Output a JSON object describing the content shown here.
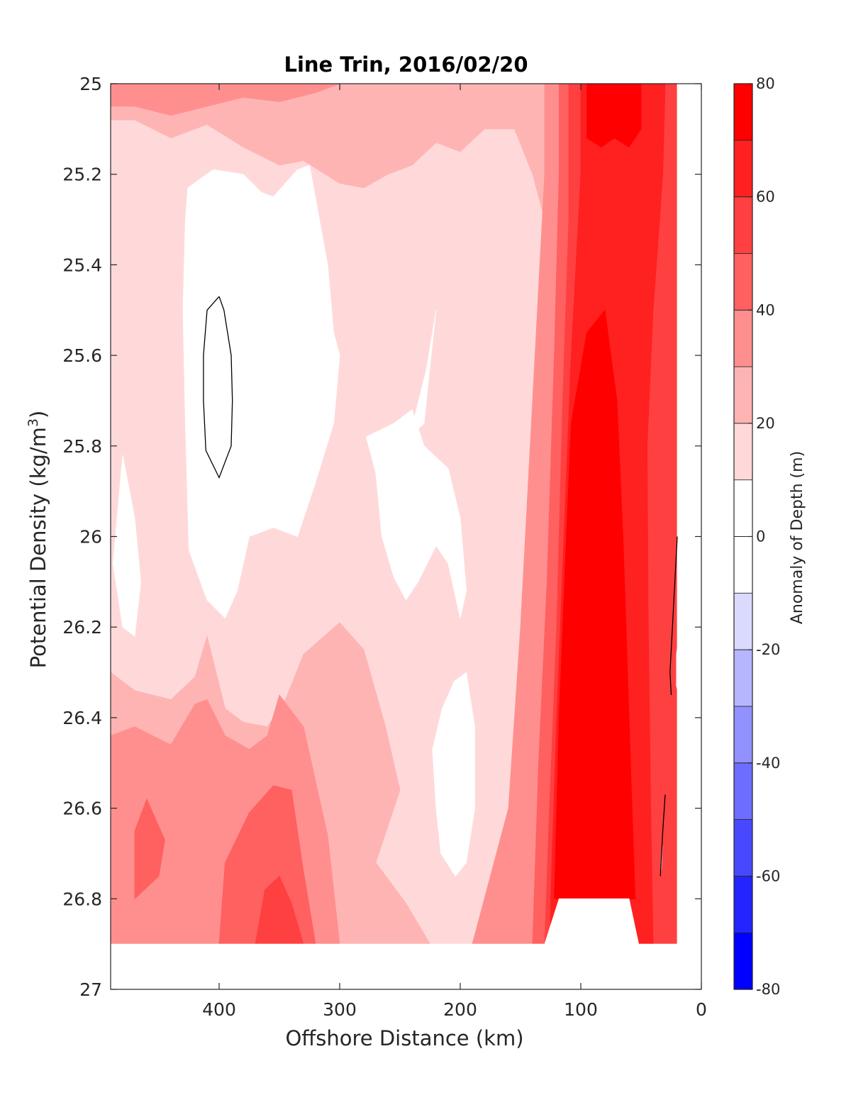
{
  "chart_data": {
    "type": "heatmap",
    "title": "Line Trin, 2016/02/20",
    "xlabel": "Offshore Distance (km)",
    "ylabel_prefix": "Potential Density (kg/m",
    "ylabel_sup": "3",
    "ylabel_suffix": ")",
    "colorbar_label": "Anomaly of Depth (m)",
    "x_reversed": true,
    "y_reversed": true,
    "xlim": [
      490,
      0
    ],
    "ylim": [
      25,
      27
    ],
    "xticks": [
      400,
      300,
      200,
      100,
      0
    ],
    "xtick_labels": [
      "400",
      "300",
      "200",
      "100",
      "0"
    ],
    "yticks": [
      25,
      25.2,
      25.4,
      25.6,
      25.8,
      26,
      26.2,
      26.4,
      26.6,
      26.8,
      27
    ],
    "ytick_labels": [
      "25",
      "25.2",
      "25.4",
      "25.6",
      "25.8",
      "26",
      "26.2",
      "26.4",
      "26.6",
      "26.8",
      "27"
    ],
    "colorbar": {
      "range": [
        -80,
        80
      ],
      "step": 10,
      "ticks": [
        80,
        60,
        40,
        20,
        0,
        -20,
        -40,
        -60,
        -80
      ],
      "tick_labels": [
        "80",
        "60",
        "40",
        "20",
        "0",
        "-20",
        "-40",
        "-60",
        "-80"
      ],
      "levels": [
        {
          "min": 70,
          "max": 80,
          "color": "#ff0000"
        },
        {
          "min": 60,
          "max": 70,
          "color": "#ff2020"
        },
        {
          "min": 50,
          "max": 60,
          "color": "#ff4040"
        },
        {
          "min": 40,
          "max": 50,
          "color": "#ff6060"
        },
        {
          "min": 30,
          "max": 40,
          "color": "#ff8f8f"
        },
        {
          "min": 20,
          "max": 30,
          "color": "#ffb4b4"
        },
        {
          "min": 10,
          "max": 20,
          "color": "#ffd9d9"
        },
        {
          "min": 0,
          "max": 10,
          "color": "#ffffff"
        },
        {
          "min": -10,
          "max": 0,
          "color": "#ffffff"
        },
        {
          "min": -20,
          "max": -10,
          "color": "#dadaff"
        },
        {
          "min": -30,
          "max": -20,
          "color": "#b6b6ff"
        },
        {
          "min": -40,
          "max": -30,
          "color": "#9191ff"
        },
        {
          "min": -50,
          "max": -40,
          "color": "#6d6dff"
        },
        {
          "min": -60,
          "max": -50,
          "color": "#4848ff"
        },
        {
          "min": -70,
          "max": -60,
          "color": "#2424ff"
        },
        {
          "min": -80,
          "max": -70,
          "color": "#0000ff"
        }
      ]
    },
    "regions": [
      {
        "level": 10,
        "color": "#ffd9d9",
        "points": [
          [
            490,
            25
          ],
          [
            20,
            25
          ],
          [
            20,
            26.9
          ],
          [
            490,
            26.9
          ]
        ]
      },
      {
        "level": 20,
        "color": "#ffb4b4",
        "points": [
          [
            490,
            25
          ],
          [
            20,
            25
          ],
          [
            20,
            26.9
          ],
          [
            40,
            26.9
          ],
          [
            44,
            26.6
          ],
          [
            50,
            26.3
          ],
          [
            70,
            25.9
          ],
          [
            90,
            25.6
          ],
          [
            120,
            25.4
          ],
          [
            140,
            25.2
          ],
          [
            155,
            25.1
          ],
          [
            180,
            25.1
          ],
          [
            200,
            25.15
          ],
          [
            220,
            25.13
          ],
          [
            240,
            25.18
          ],
          [
            260,
            25.2
          ],
          [
            280,
            25.23
          ],
          [
            300,
            25.22
          ],
          [
            330,
            25.17
          ],
          [
            350,
            25.18
          ],
          [
            380,
            25.14
          ],
          [
            410,
            25.09
          ],
          [
            440,
            25.12
          ],
          [
            470,
            25.08
          ],
          [
            490,
            25.08
          ]
        ]
      },
      {
        "level": 20,
        "color": "#ffb4b4",
        "points": [
          [
            490,
            26.3
          ],
          [
            470,
            26.34
          ],
          [
            440,
            26.36
          ],
          [
            420,
            26.31
          ],
          [
            410,
            26.22
          ],
          [
            395,
            26.38
          ],
          [
            380,
            26.41
          ],
          [
            360,
            26.42
          ],
          [
            345,
            26.36
          ],
          [
            330,
            26.26
          ],
          [
            300,
            26.19
          ],
          [
            280,
            26.25
          ],
          [
            262,
            26.42
          ],
          [
            250,
            26.56
          ],
          [
            270,
            26.72
          ],
          [
            245,
            26.81
          ],
          [
            225,
            26.9
          ],
          [
            490,
            26.9
          ]
        ]
      },
      {
        "level": 30,
        "color": "#ff8f8f",
        "points": [
          [
            490,
            25
          ],
          [
            300,
            25
          ],
          [
            320,
            25.02
          ],
          [
            350,
            25.04
          ],
          [
            380,
            25.03
          ],
          [
            410,
            25.05
          ],
          [
            440,
            25.07
          ],
          [
            470,
            25.05
          ],
          [
            490,
            25.05
          ]
        ]
      },
      {
        "level": 30,
        "color": "#ff8f8f",
        "points": [
          [
            490,
            26.44
          ],
          [
            470,
            26.42
          ],
          [
            440,
            26.46
          ],
          [
            420,
            26.37
          ],
          [
            410,
            26.36
          ],
          [
            395,
            26.44
          ],
          [
            375,
            26.47
          ],
          [
            360,
            26.44
          ],
          [
            350,
            26.35
          ],
          [
            330,
            26.42
          ],
          [
            310,
            26.66
          ],
          [
            300,
            26.9
          ],
          [
            490,
            26.9
          ]
        ]
      },
      {
        "level": 30,
        "color": "#ff8f8f",
        "points": [
          [
            190,
            26.9
          ],
          [
            160,
            26.6
          ],
          [
            150,
            26.2
          ],
          [
            140,
            25.7
          ],
          [
            130,
            25.2
          ],
          [
            130,
            25
          ],
          [
            20,
            25
          ],
          [
            20,
            26.9
          ]
        ]
      },
      {
        "level": 40,
        "color": "#ff6060",
        "points": [
          [
            400,
            26.9
          ],
          [
            395,
            26.72
          ],
          [
            375,
            26.61
          ],
          [
            355,
            26.55
          ],
          [
            340,
            26.56
          ],
          [
            330,
            26.74
          ],
          [
            320,
            26.9
          ]
        ]
      },
      {
        "level": 40,
        "color": "#ff6060",
        "points": [
          [
            470,
            26.65
          ],
          [
            460,
            26.58
          ],
          [
            445,
            26.67
          ],
          [
            450,
            26.75
          ],
          [
            470,
            26.8
          ]
        ]
      },
      {
        "level": 40,
        "color": "#ff6060",
        "points": [
          [
            140,
            26.9
          ],
          [
            135,
            26.5
          ],
          [
            128,
            26.1
          ],
          [
            122,
            25.6
          ],
          [
            118,
            25.2
          ],
          [
            118,
            25
          ],
          [
            20,
            25
          ],
          [
            20,
            26.9
          ]
        ]
      },
      {
        "level": 50,
        "color": "#ff4040",
        "points": [
          [
            370,
            26.9
          ],
          [
            362,
            26.78
          ],
          [
            350,
            26.75
          ],
          [
            340,
            26.81
          ],
          [
            330,
            26.9
          ]
        ]
      },
      {
        "level": 50,
        "color": "#ff4040",
        "points": [
          [
            130,
            26.9
          ],
          [
            126,
            26.6
          ],
          [
            120,
            26.2
          ],
          [
            115,
            25.7
          ],
          [
            110,
            25.3
          ],
          [
            110,
            25
          ],
          [
            20,
            25
          ],
          [
            20,
            26.9
          ]
        ]
      },
      {
        "level": 60,
        "color": "#ff2020",
        "points": [
          [
            125,
            26.8
          ],
          [
            120,
            26.4
          ],
          [
            114,
            26
          ],
          [
            108,
            25.6
          ],
          [
            100,
            25.2
          ],
          [
            100,
            25
          ],
          [
            30,
            25
          ],
          [
            32,
            25.2
          ],
          [
            40,
            25.5
          ],
          [
            45,
            25.8
          ],
          [
            44,
            26.2
          ],
          [
            42,
            26.6
          ],
          [
            40,
            26.9
          ],
          [
            125,
            26.9
          ]
        ]
      },
      {
        "level": 70,
        "color": "#ff0000",
        "points": [
          [
            122,
            26.8
          ],
          [
            118,
            26.4
          ],
          [
            112,
            26
          ],
          [
            108,
            25.75
          ],
          [
            95,
            25.55
          ],
          [
            80,
            25.5
          ],
          [
            70,
            25.7
          ],
          [
            65,
            26.0
          ],
          [
            60,
            26.4
          ],
          [
            55,
            26.8
          ]
        ]
      },
      {
        "level": 70,
        "color": "#ff0000",
        "points": [
          [
            95,
            25
          ],
          [
            95,
            25.12
          ],
          [
            83,
            25.14
          ],
          [
            72,
            25.12
          ],
          [
            60,
            25.14
          ],
          [
            50,
            25.1
          ],
          [
            50,
            25
          ]
        ]
      },
      {
        "level": 0,
        "color": "#ffffff",
        "points": [
          [
            490,
            26.9
          ],
          [
            490,
            27
          ],
          [
            0,
            27
          ],
          [
            0,
            26.9
          ]
        ]
      },
      {
        "level": 0,
        "color": "#ffffff",
        "points": [
          [
            20,
            25
          ],
          [
            0,
            25
          ],
          [
            0,
            27
          ],
          [
            20,
            27
          ]
        ]
      },
      {
        "level": 0,
        "color": "#ffffff",
        "points": [
          [
            118,
            26.8
          ],
          [
            60,
            26.8
          ],
          [
            52,
            26.9
          ],
          [
            130,
            26.9
          ]
        ]
      },
      {
        "level": 0,
        "color": "#ffffff",
        "points": [
          [
            426,
            25.23
          ],
          [
            405,
            25.19
          ],
          [
            380,
            25.2
          ],
          [
            365,
            25.24
          ],
          [
            355,
            25.25
          ],
          [
            335,
            25.19
          ],
          [
            325,
            25.18
          ],
          [
            310,
            25.4
          ],
          [
            305,
            25.55
          ],
          [
            300,
            25.6
          ],
          [
            305,
            25.75
          ],
          [
            320,
            25.88
          ],
          [
            335,
            26.0
          ],
          [
            355,
            25.98
          ],
          [
            375,
            26.0
          ],
          [
            385,
            26.12
          ],
          [
            395,
            26.18
          ],
          [
            410,
            26.14
          ],
          [
            425,
            26.03
          ],
          [
            428,
            25.75
          ],
          [
            430,
            25.5
          ],
          [
            428,
            25.3
          ]
        ]
      },
      {
        "level": 0,
        "color": "#ffffff",
        "points": [
          [
            240,
            25.72
          ],
          [
            230,
            25.8
          ],
          [
            210,
            25.85
          ],
          [
            200,
            25.96
          ],
          [
            195,
            26.12
          ],
          [
            200,
            26.18
          ],
          [
            210,
            26.06
          ],
          [
            220,
            26.02
          ],
          [
            235,
            26.1
          ],
          [
            245,
            26.14
          ],
          [
            255,
            26.09
          ],
          [
            265,
            26.0
          ],
          [
            270,
            25.86
          ],
          [
            278,
            25.78
          ],
          [
            255,
            25.75
          ]
        ]
      },
      {
        "level": 0,
        "color": "#ffffff",
        "points": [
          [
            220,
            25.5
          ],
          [
            225,
            25.62
          ],
          [
            230,
            25.75
          ],
          [
            242,
            25.78
          ],
          [
            228,
            25.63
          ]
        ]
      },
      {
        "level": 0,
        "color": "#ffffff",
        "points": [
          [
            195,
            26.3
          ],
          [
            205,
            26.32
          ],
          [
            215,
            26.38
          ],
          [
            223,
            26.47
          ],
          [
            220,
            26.6
          ],
          [
            216,
            26.7
          ],
          [
            204,
            26.75
          ],
          [
            195,
            26.72
          ],
          [
            188,
            26.6
          ],
          [
            188,
            26.42
          ]
        ]
      },
      {
        "level": 0,
        "color": "#ffffff",
        "points": [
          [
            480,
            25.82
          ],
          [
            470,
            25.96
          ],
          [
            465,
            26.1
          ],
          [
            470,
            26.22
          ],
          [
            480,
            26.2
          ],
          [
            488,
            26.06
          ]
        ]
      }
    ],
    "contour_lines": [
      {
        "level": -10,
        "color": "#000000",
        "points": [
          [
            400,
            25.47
          ],
          [
            410,
            25.5
          ],
          [
            413,
            25.6
          ],
          [
            413,
            25.7
          ],
          [
            411,
            25.81
          ],
          [
            400,
            25.87
          ],
          [
            390,
            25.8
          ],
          [
            389,
            25.7
          ],
          [
            390,
            25.6
          ],
          [
            396,
            25.5
          ],
          [
            400,
            25.47
          ]
        ]
      },
      {
        "level": -10,
        "color": "#000000",
        "points": [
          [
            20,
            26.0
          ],
          [
            22,
            26.1
          ],
          [
            24,
            26.2
          ],
          [
            26,
            26.3
          ],
          [
            25,
            26.35
          ]
        ]
      },
      {
        "level": -10,
        "color": "#000000",
        "points": [
          [
            30,
            26.57
          ],
          [
            32,
            26.65
          ],
          [
            34,
            26.75
          ]
        ]
      }
    ],
    "negative_patches": [
      {
        "level": -20,
        "color": "#e8e8ff",
        "points": [
          [
            20,
            26.24
          ],
          [
            21,
            26.26
          ],
          [
            21,
            26.33
          ],
          [
            20,
            26.34
          ]
        ]
      },
      {
        "level": -20,
        "color": "#e8e8ff",
        "points": [
          [
            32,
            26.68
          ],
          [
            34,
            26.72
          ],
          [
            33,
            26.74
          ]
        ]
      }
    ]
  }
}
